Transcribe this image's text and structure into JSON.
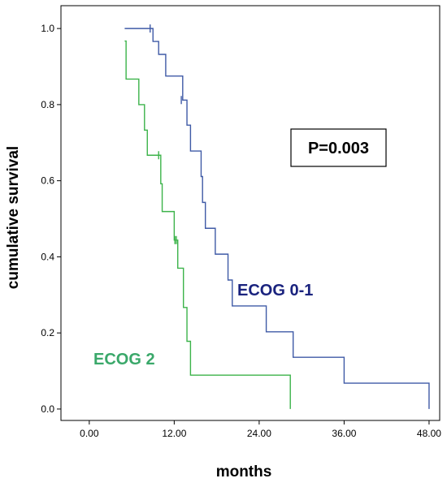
{
  "chart_data": {
    "type": "line",
    "step": "post",
    "xlabel": "months",
    "ylabel": "cumulative survival",
    "xlim": [
      -4,
      49.5
    ],
    "ylim": [
      -0.03,
      1.06
    ],
    "xticks": [
      0,
      12,
      24,
      36,
      48
    ],
    "xtick_labels": [
      "0.00",
      "12.00",
      "24.00",
      "36.00",
      "48.00"
    ],
    "yticks": [
      0.0,
      0.2,
      0.4,
      0.6,
      0.8,
      1.0
    ],
    "ytick_labels": [
      "0.0",
      "0.2",
      "0.4",
      "0.6",
      "0.8",
      "1.0"
    ],
    "annotation": "P=0.003",
    "series": [
      {
        "name": "ECOG 0-1",
        "color": "#3f5aa6",
        "label_color": "#1a237e",
        "x": [
          5,
          9,
          9.8,
          10.8,
          13.2,
          13.8,
          14.3,
          15.8,
          16.0,
          16.4,
          17.8,
          19.6,
          20.2,
          25.0,
          28.8,
          36.0,
          48.0
        ],
        "y": [
          1.0,
          0.966,
          0.932,
          0.875,
          0.812,
          0.746,
          0.678,
          0.611,
          0.543,
          0.475,
          0.407,
          0.339,
          0.271,
          0.203,
          0.136,
          0.068,
          0.0
        ],
        "censored": [
          [
            8.6,
            1.0
          ],
          [
            13.0,
            0.812
          ]
        ]
      },
      {
        "name": "ECOG 2",
        "color": "#3cb34a",
        "label_color": "#3aa86a",
        "x": [
          5,
          5.2,
          7.0,
          7.8,
          8.2,
          10.1,
          10.3,
          10.5,
          12.0,
          12.5,
          13.3,
          13.8,
          14.3,
          28.3,
          28.4
        ],
        "y": [
          0.967,
          0.867,
          0.8,
          0.733,
          0.667,
          0.592,
          0.519,
          0.519,
          0.444,
          0.37,
          0.267,
          0.178,
          0.089,
          0.089,
          0.0
        ],
        "censored": [
          [
            9.8,
            0.667
          ],
          [
            12.1,
            0.444
          ],
          [
            12.3,
            0.444
          ]
        ]
      }
    ]
  }
}
